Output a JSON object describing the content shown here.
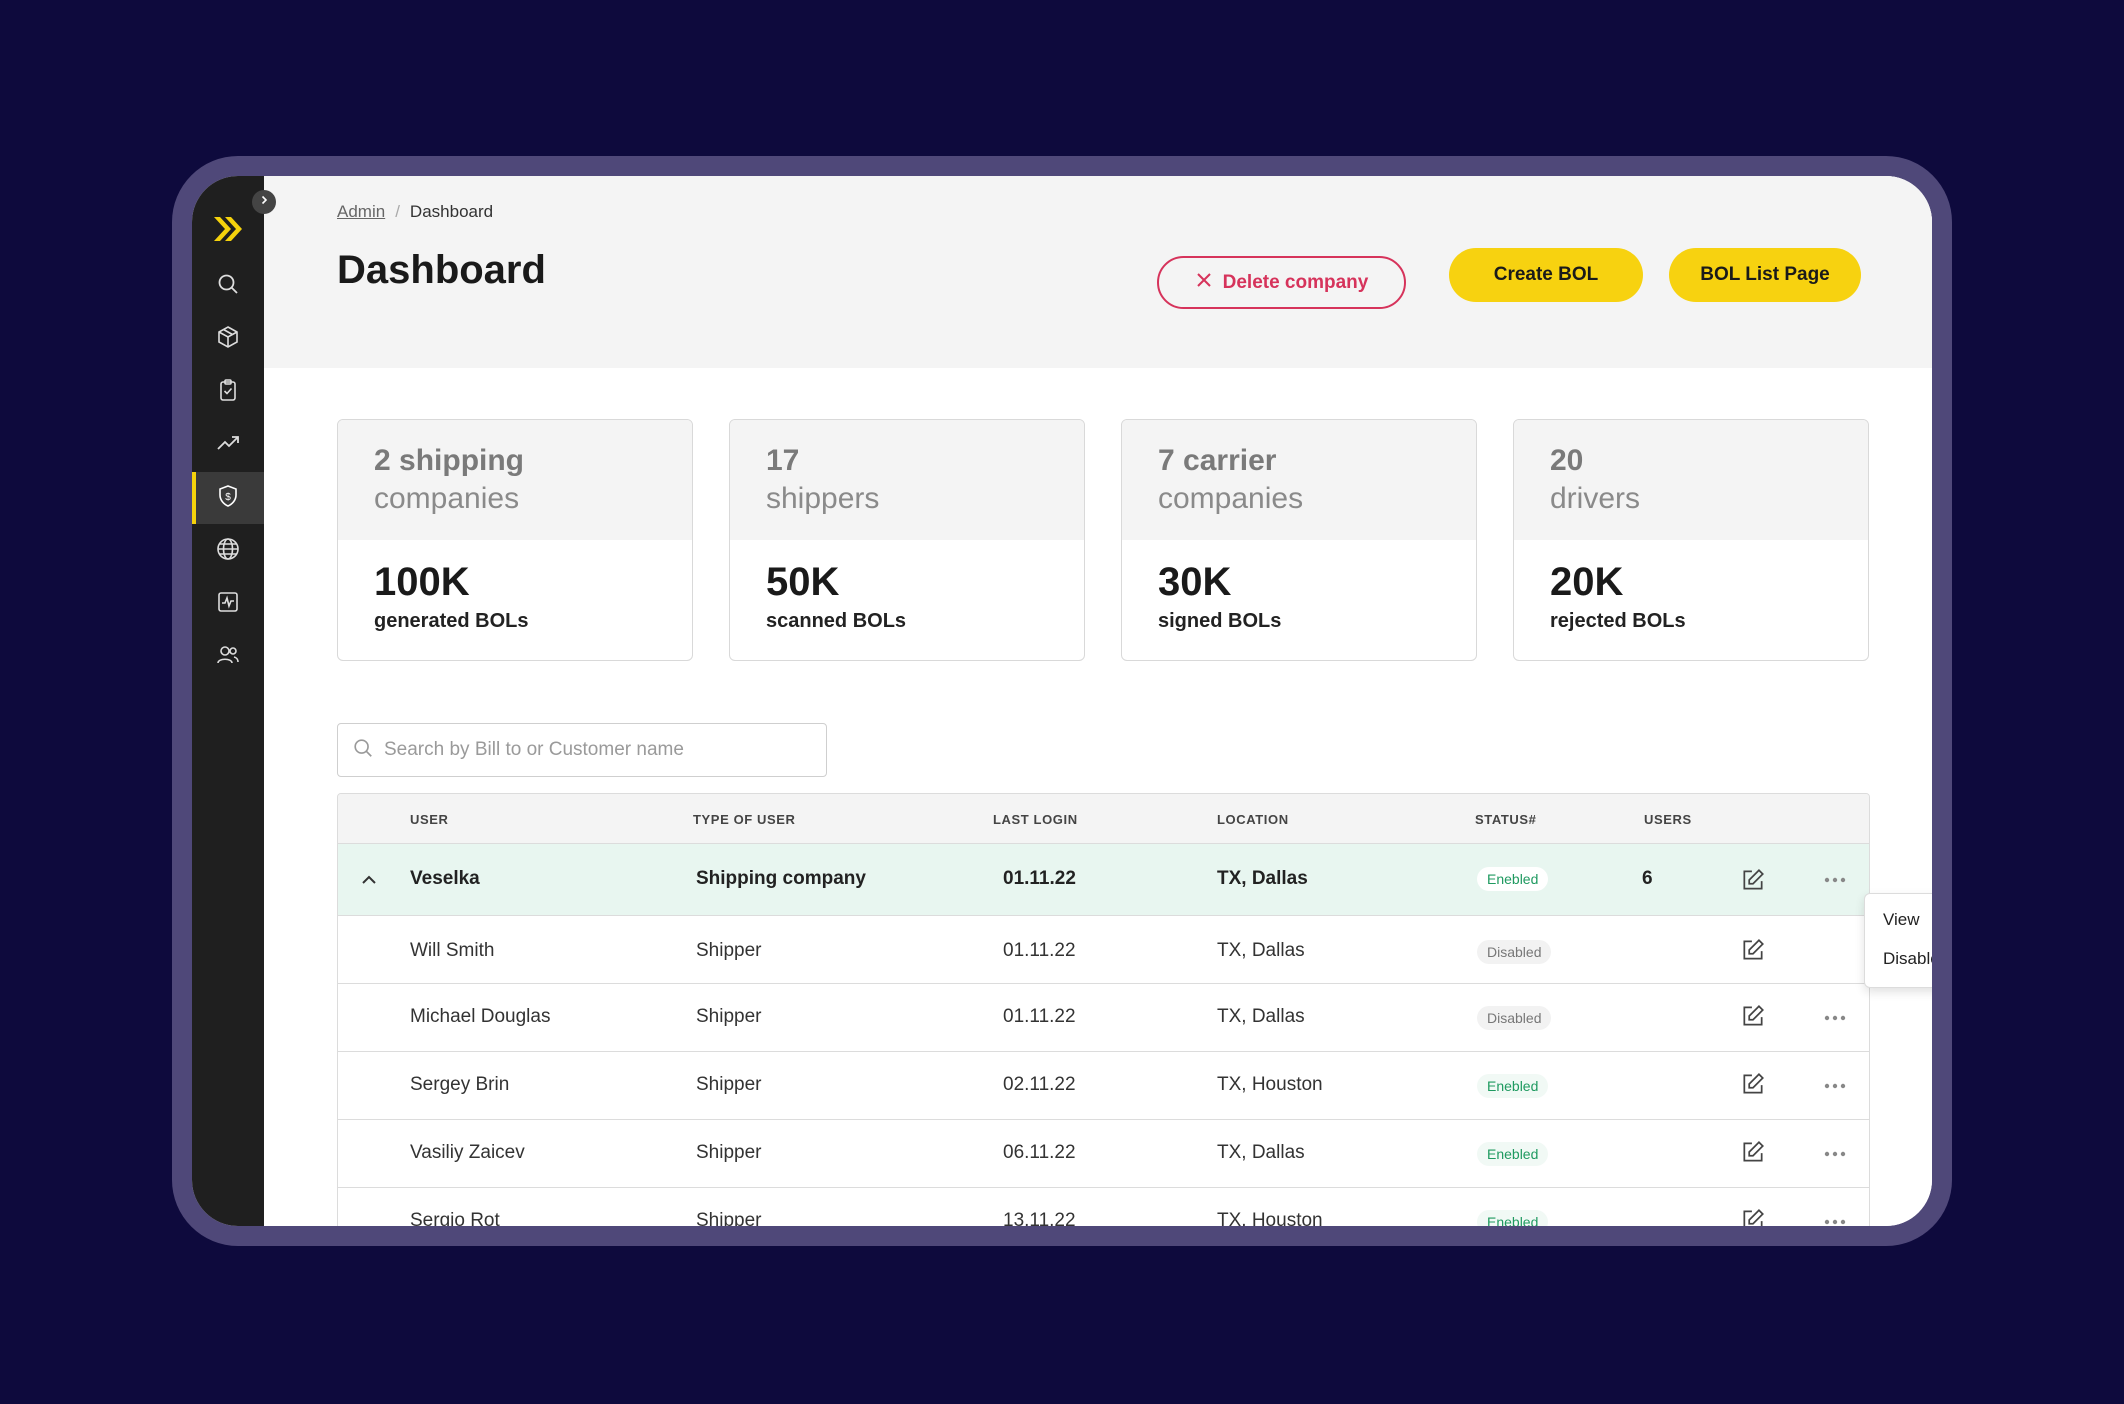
{
  "breadcrumb": {
    "root": "Admin",
    "separator": "/",
    "current": "Dashboard"
  },
  "page": {
    "title": "Dashboard"
  },
  "actions": {
    "delete_company": "Delete company",
    "create_bol": "Create BOL",
    "bol_list": "BOL List Page"
  },
  "colors": {
    "accent": "#f7d210",
    "danger": "#d6335b",
    "sidebar": "#1f1f1f",
    "background": "#0e0a3d",
    "enabled": "#1f9a60"
  },
  "sidebar": {
    "items": [
      {
        "icon": "search-icon"
      },
      {
        "icon": "box-icon"
      },
      {
        "icon": "clipboard-check-icon"
      },
      {
        "icon": "trend-up-icon"
      },
      {
        "icon": "shield-dollar-icon",
        "active": true
      },
      {
        "icon": "globe-icon"
      },
      {
        "icon": "activity-chart-icon"
      },
      {
        "icon": "users-icon"
      }
    ]
  },
  "stats": [
    {
      "count": "2 shipping",
      "sub": "companies",
      "value": "100K",
      "label": "generated BOLs"
    },
    {
      "count": "17",
      "sub": "shippers",
      "value": "50K",
      "label": "scanned BOLs"
    },
    {
      "count": "7 carrier",
      "sub": "companies",
      "value": "30K",
      "label": "signed BOLs"
    },
    {
      "count": "20",
      "sub": "drivers",
      "value": "20K",
      "label": "rejected BOLs"
    }
  ],
  "search": {
    "placeholder": "Search by Bill to or Customer name",
    "value": ""
  },
  "table": {
    "columns": [
      "USER",
      "TYPE OF USER",
      "LAST LOGIN",
      "LOCATION",
      "STATUS#",
      "USERS"
    ],
    "group": {
      "user": "Veselka",
      "type": "Shipping company",
      "last_login": "01.11.22",
      "location": "TX, Dallas",
      "status": "Enebled",
      "users": "6"
    },
    "rows": [
      {
        "user": "Will Smith",
        "type": "Shipper",
        "last_login": "01.11.22",
        "location": "TX, Dallas",
        "status": "Disabled"
      },
      {
        "user": "Michael Douglas",
        "type": "Shipper",
        "last_login": "01.11.22",
        "location": "TX, Dallas",
        "status": "Disabled"
      },
      {
        "user": "Sergey Brin",
        "type": "Shipper",
        "last_login": "02.11.22",
        "location": "TX, Houston",
        "status": "Enebled"
      },
      {
        "user": "Vasiliy Zaicev",
        "type": "Shipper",
        "last_login": "06.11.22",
        "location": "TX, Dallas",
        "status": "Enebled"
      },
      {
        "user": "Sergio Rot",
        "type": "Shipper",
        "last_login": "13.11.22",
        "location": "TX, Houston",
        "status": "Enebled"
      }
    ]
  },
  "row_menu": {
    "view": "View",
    "disable": "Disable"
  }
}
